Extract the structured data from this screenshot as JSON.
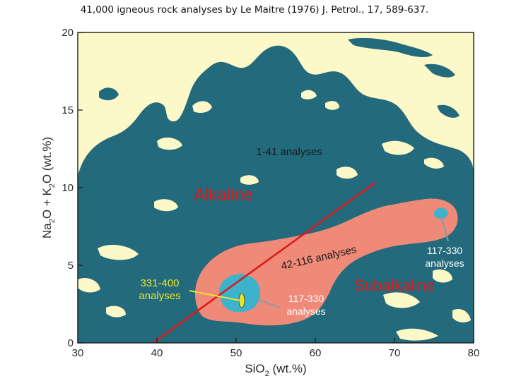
{
  "slide": {
    "title": "41,000 igneous rock analyses by Le Maitre (1976) J. Petrol., 17, 589-637."
  },
  "chart_data": {
    "type": "density contour",
    "xlabel": {
      "main": "SiO",
      "sub": "2",
      "tail": " (wt.%)"
    },
    "ylabel": {
      "p1": "Na",
      "s1": "2",
      "p2": "O + K",
      "s2": "2",
      "p3": "O (wt.%)"
    },
    "xlim": [
      30,
      80
    ],
    "ylim": [
      0,
      20
    ],
    "x_ticks": [
      30,
      40,
      50,
      60,
      70,
      80
    ],
    "y_ticks": [
      0,
      5,
      10,
      15,
      20
    ],
    "grid": false,
    "density_classes": [
      {
        "label": "1-41 analyses",
        "color": "#236a7c"
      },
      {
        "label": "42-116 analyses",
        "color": "#f08a78"
      },
      {
        "label": "117-330 analyses",
        "color": "#3cb2cc"
      },
      {
        "label": "331-400 analyses",
        "color": "#e8e42a"
      }
    ],
    "dividing_line": {
      "color": "#dd1a1a",
      "points": [
        [
          39.5,
          0
        ],
        [
          67.5,
          10.3
        ]
      ]
    },
    "regions": [
      {
        "label": "Alkaline",
        "color": "#dd1a1a"
      },
      {
        "label": "Subalkaline",
        "color": "#dd1a1a"
      }
    ],
    "annotations": {
      "low_density": "1-41 analyses",
      "medium_density": "42-116 analyses",
      "peak": {
        "line1": "331-400",
        "line2": "analyses",
        "color": "#e8e42a"
      },
      "high_left": {
        "line1": "117-330",
        "line2": "analyses"
      },
      "high_right": {
        "line1": "117-330",
        "line2": "analyses"
      }
    },
    "colors": {
      "background": "#fdf8c8",
      "frame": "#1a1a1a",
      "ink": "#2a2a2a"
    }
  }
}
